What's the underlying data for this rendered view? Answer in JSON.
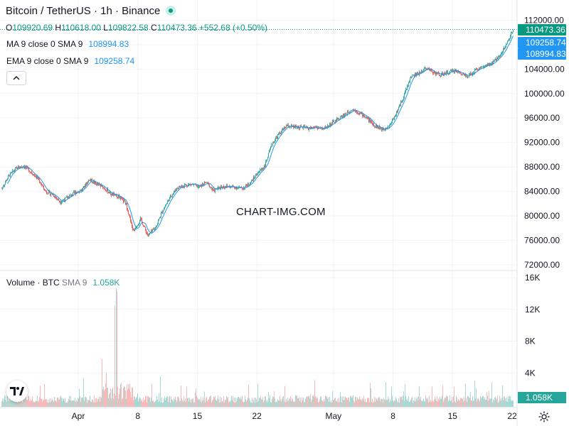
{
  "header": {
    "symbol": "Bitcoin / TetherUS",
    "interval": "1h",
    "exchange": "Binance",
    "title": "Bitcoin / TetherUS · 1h · Binance"
  },
  "ohlc": {
    "open_label": "O",
    "open": "109920.69",
    "high_label": "H",
    "high": "110618.00",
    "low_label": "L",
    "low": "109822.58",
    "close_label": "C",
    "close": "110473.36",
    "change": "+552.68 (+0.50%)"
  },
  "indicators": {
    "ma": {
      "label": "MA 9 close 0 SMA 9",
      "value": "108994.83"
    },
    "ema": {
      "label": "EMA 9 close 0 SMA 9",
      "value": "109258.74"
    }
  },
  "volume": {
    "label": "Volume · BTC",
    "sma_label": "SMA 9",
    "value": "1.058K"
  },
  "watermark": "CHART-IMG.COM",
  "colors": {
    "up": "#26a69a",
    "down": "#ef5350",
    "ma_line": "#2196f3",
    "price_label_bg": "#089981",
    "indicator_label_bg": "#2196f3"
  },
  "chart_data": {
    "type": "candlestick",
    "interval": "1h",
    "price_axis": {
      "ticks": [
        72000,
        76000,
        80000,
        84000,
        88000,
        92000,
        96000,
        100000,
        104000,
        108000,
        112000
      ],
      "tick_labels": [
        "72000.00",
        "76000.00",
        "80000.00",
        "84000.00",
        "88000.00",
        "92000.00",
        "96000.00",
        "100000.00",
        "104000.00",
        "108000.00",
        "112000.00"
      ],
      "ylim": [
        71200,
        113200
      ]
    },
    "volume_axis": {
      "ticks": [
        4000,
        8000,
        12000,
        16000
      ],
      "tick_labels": [
        "4K",
        "8K",
        "12K",
        "16K"
      ],
      "ylim": [
        0,
        16000
      ]
    },
    "time_axis": {
      "tick_labels": [
        "Apr",
        "8",
        "15",
        "22",
        "May",
        "8",
        "15",
        "22"
      ],
      "tick_days": [
        0,
        7,
        14,
        21,
        30,
        37,
        44,
        51
      ],
      "start_date": "2025-03-26"
    },
    "price_labels": [
      {
        "value": "110473.36",
        "price": 110473.36,
        "color": "#089981"
      },
      {
        "value": "109258.74",
        "price": 109258.74,
        "color": "#2196f3"
      },
      {
        "value": "108994.83",
        "price": 108994.83,
        "color": "#2196f3"
      }
    ],
    "volume_label": {
      "value": "1.058K"
    },
    "close_path": [
      [
        0,
        84500
      ],
      [
        1,
        86600
      ],
      [
        2,
        87800
      ],
      [
        3,
        88200
      ],
      [
        4,
        87200
      ],
      [
        5,
        86000
      ],
      [
        6,
        84000
      ],
      [
        7,
        83500
      ],
      [
        8,
        82300
      ],
      [
        9,
        83000
      ],
      [
        10,
        83800
      ],
      [
        11,
        84300
      ],
      [
        12,
        86000
      ],
      [
        13,
        85200
      ],
      [
        14,
        84600
      ],
      [
        15,
        83500
      ],
      [
        16,
        83200
      ],
      [
        17,
        82000
      ],
      [
        18,
        77500
      ],
      [
        19,
        79500
      ],
      [
        20,
        76800
      ],
      [
        21,
        78000
      ],
      [
        22,
        80800
      ],
      [
        23,
        83000
      ],
      [
        24,
        84600
      ],
      [
        25,
        85000
      ],
      [
        26,
        85200
      ],
      [
        27,
        84700
      ],
      [
        28,
        85500
      ],
      [
        29,
        84100
      ],
      [
        30,
        84800
      ],
      [
        31,
        84800
      ],
      [
        32,
        84700
      ],
      [
        33,
        84500
      ],
      [
        34,
        85400
      ],
      [
        35,
        87000
      ],
      [
        36,
        88200
      ],
      [
        37,
        91800
      ],
      [
        38,
        93500
      ],
      [
        39,
        94700
      ],
      [
        40,
        94500
      ],
      [
        41,
        94500
      ],
      [
        42,
        94300
      ],
      [
        43,
        94500
      ],
      [
        44,
        94200
      ],
      [
        45,
        95000
      ],
      [
        46,
        95800
      ],
      [
        47,
        96600
      ],
      [
        48,
        97500
      ],
      [
        49,
        96800
      ],
      [
        50,
        96000
      ],
      [
        51,
        94800
      ],
      [
        52,
        94200
      ],
      [
        53,
        94600
      ],
      [
        54,
        96800
      ],
      [
        55,
        99500
      ],
      [
        56,
        102800
      ],
      [
        57,
        103200
      ],
      [
        58,
        104200
      ],
      [
        59,
        103600
      ],
      [
        60,
        103000
      ],
      [
        61,
        103400
      ],
      [
        62,
        103800
      ],
      [
        63,
        103200
      ],
      [
        64,
        102900
      ],
      [
        65,
        104000
      ],
      [
        66,
        104400
      ],
      [
        67,
        104800
      ],
      [
        68,
        106000
      ],
      [
        69,
        107800
      ],
      [
        70,
        110473
      ]
    ]
  }
}
